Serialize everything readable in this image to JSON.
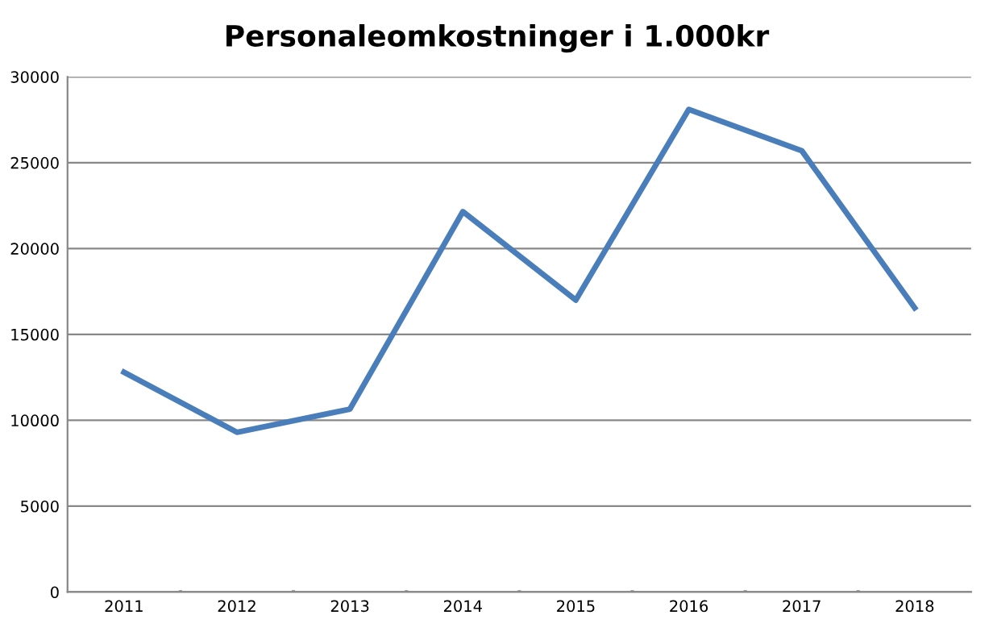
{
  "chart_data": {
    "type": "line",
    "title": "Personaleomkostninger i 1.000kr",
    "categories": [
      "2011",
      "2012",
      "2013",
      "2014",
      "2015",
      "2016",
      "2017",
      "2018"
    ],
    "series": [
      {
        "color": "#4a7ebb",
        "values": [
          12800,
          9300,
          10650,
          22150,
          17000,
          28100,
          25700,
          16550
        ]
      }
    ],
    "ylim": [
      0,
      30000
    ],
    "yticks": [
      0,
      5000,
      10000,
      15000,
      20000,
      25000,
      30000
    ],
    "grid": "y",
    "marker": "none",
    "line_style": "solid"
  }
}
